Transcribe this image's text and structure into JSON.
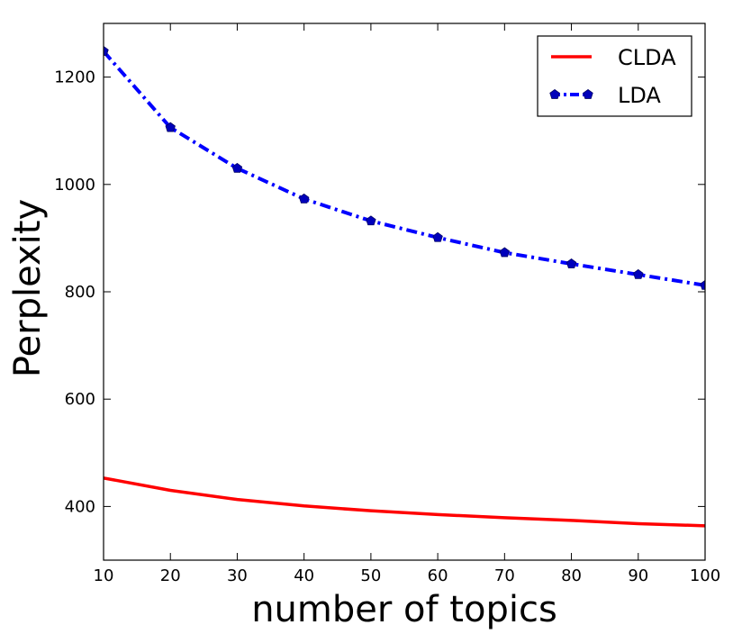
{
  "chart_data": {
    "type": "line",
    "title": "",
    "xlabel": "number of topics",
    "ylabel": "Perplexity",
    "x": [
      10,
      20,
      30,
      40,
      50,
      60,
      70,
      80,
      90,
      100
    ],
    "xlim": [
      10,
      100
    ],
    "ylim": [
      300,
      1300
    ],
    "xticks": [
      10,
      20,
      30,
      40,
      50,
      60,
      70,
      80,
      90,
      100
    ],
    "yticks": [
      400,
      600,
      800,
      1000,
      1200
    ],
    "grid": false,
    "legend_position": "top-right",
    "series": [
      {
        "name": "CLDA",
        "color": "#ff0000",
        "style": "solid",
        "marker": "none",
        "values": [
          453,
          430,
          413,
          401,
          392,
          385,
          379,
          374,
          368,
          364
        ]
      },
      {
        "name": "LDA",
        "color": "#0000ff",
        "style": "dash-dot",
        "marker": "pentagon",
        "values": [
          1248,
          1106,
          1030,
          973,
          932,
          901,
          873,
          852,
          832,
          812
        ]
      }
    ]
  }
}
